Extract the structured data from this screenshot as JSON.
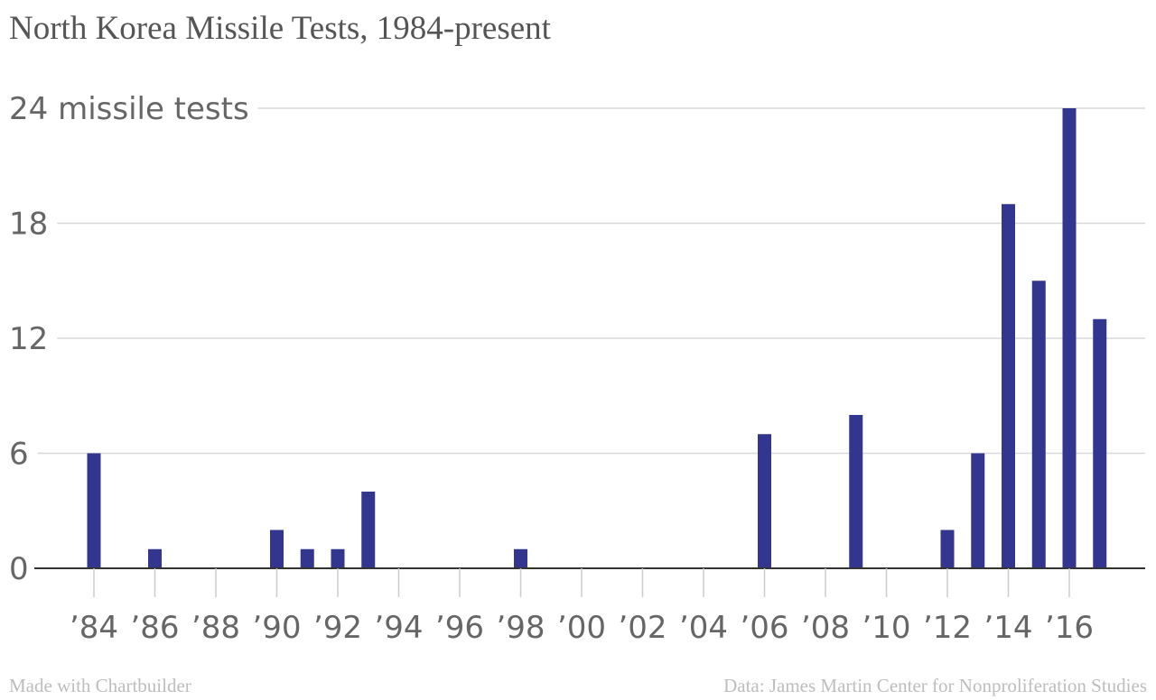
{
  "chart_data": {
    "type": "bar",
    "title": "North Korea Missile Tests, 1984-present",
    "unit_label": "missile tests",
    "years": [
      1984,
      1985,
      1986,
      1987,
      1988,
      1989,
      1990,
      1991,
      1992,
      1993,
      1994,
      1995,
      1996,
      1997,
      1998,
      1999,
      2000,
      2001,
      2002,
      2003,
      2004,
      2005,
      2006,
      2007,
      2008,
      2009,
      2010,
      2011,
      2012,
      2013,
      2014,
      2015,
      2016,
      2017
    ],
    "values": [
      6,
      0,
      1,
      0,
      0,
      0,
      2,
      1,
      1,
      4,
      0,
      0,
      0,
      0,
      1,
      0,
      0,
      0,
      0,
      0,
      0,
      0,
      7,
      0,
      0,
      8,
      0,
      0,
      2,
      6,
      19,
      15,
      24,
      13
    ],
    "x_tick_years": [
      1984,
      1986,
      1988,
      1990,
      1992,
      1994,
      1996,
      1998,
      2000,
      2002,
      2004,
      2006,
      2008,
      2010,
      2012,
      2014,
      2016
    ],
    "x_tick_labels": [
      "’84",
      "’86",
      "’88",
      "’90",
      "’92",
      "’94",
      "’96",
      "’98",
      "’00",
      "’02",
      "’04",
      "’06",
      "’08",
      "’10",
      "’12",
      "’14",
      "’16"
    ],
    "y_ticks": [
      0,
      6,
      12,
      18,
      24
    ],
    "y_tick_labels": [
      "0",
      "6",
      "12",
      "18",
      "24 missile tests"
    ],
    "ylim": [
      0,
      24
    ],
    "grid": true,
    "bar_color": "#33368f"
  },
  "footer": {
    "left": "Made with Chartbuilder",
    "right": "Data: James Martin Center for Nonproliferation Studies"
  }
}
